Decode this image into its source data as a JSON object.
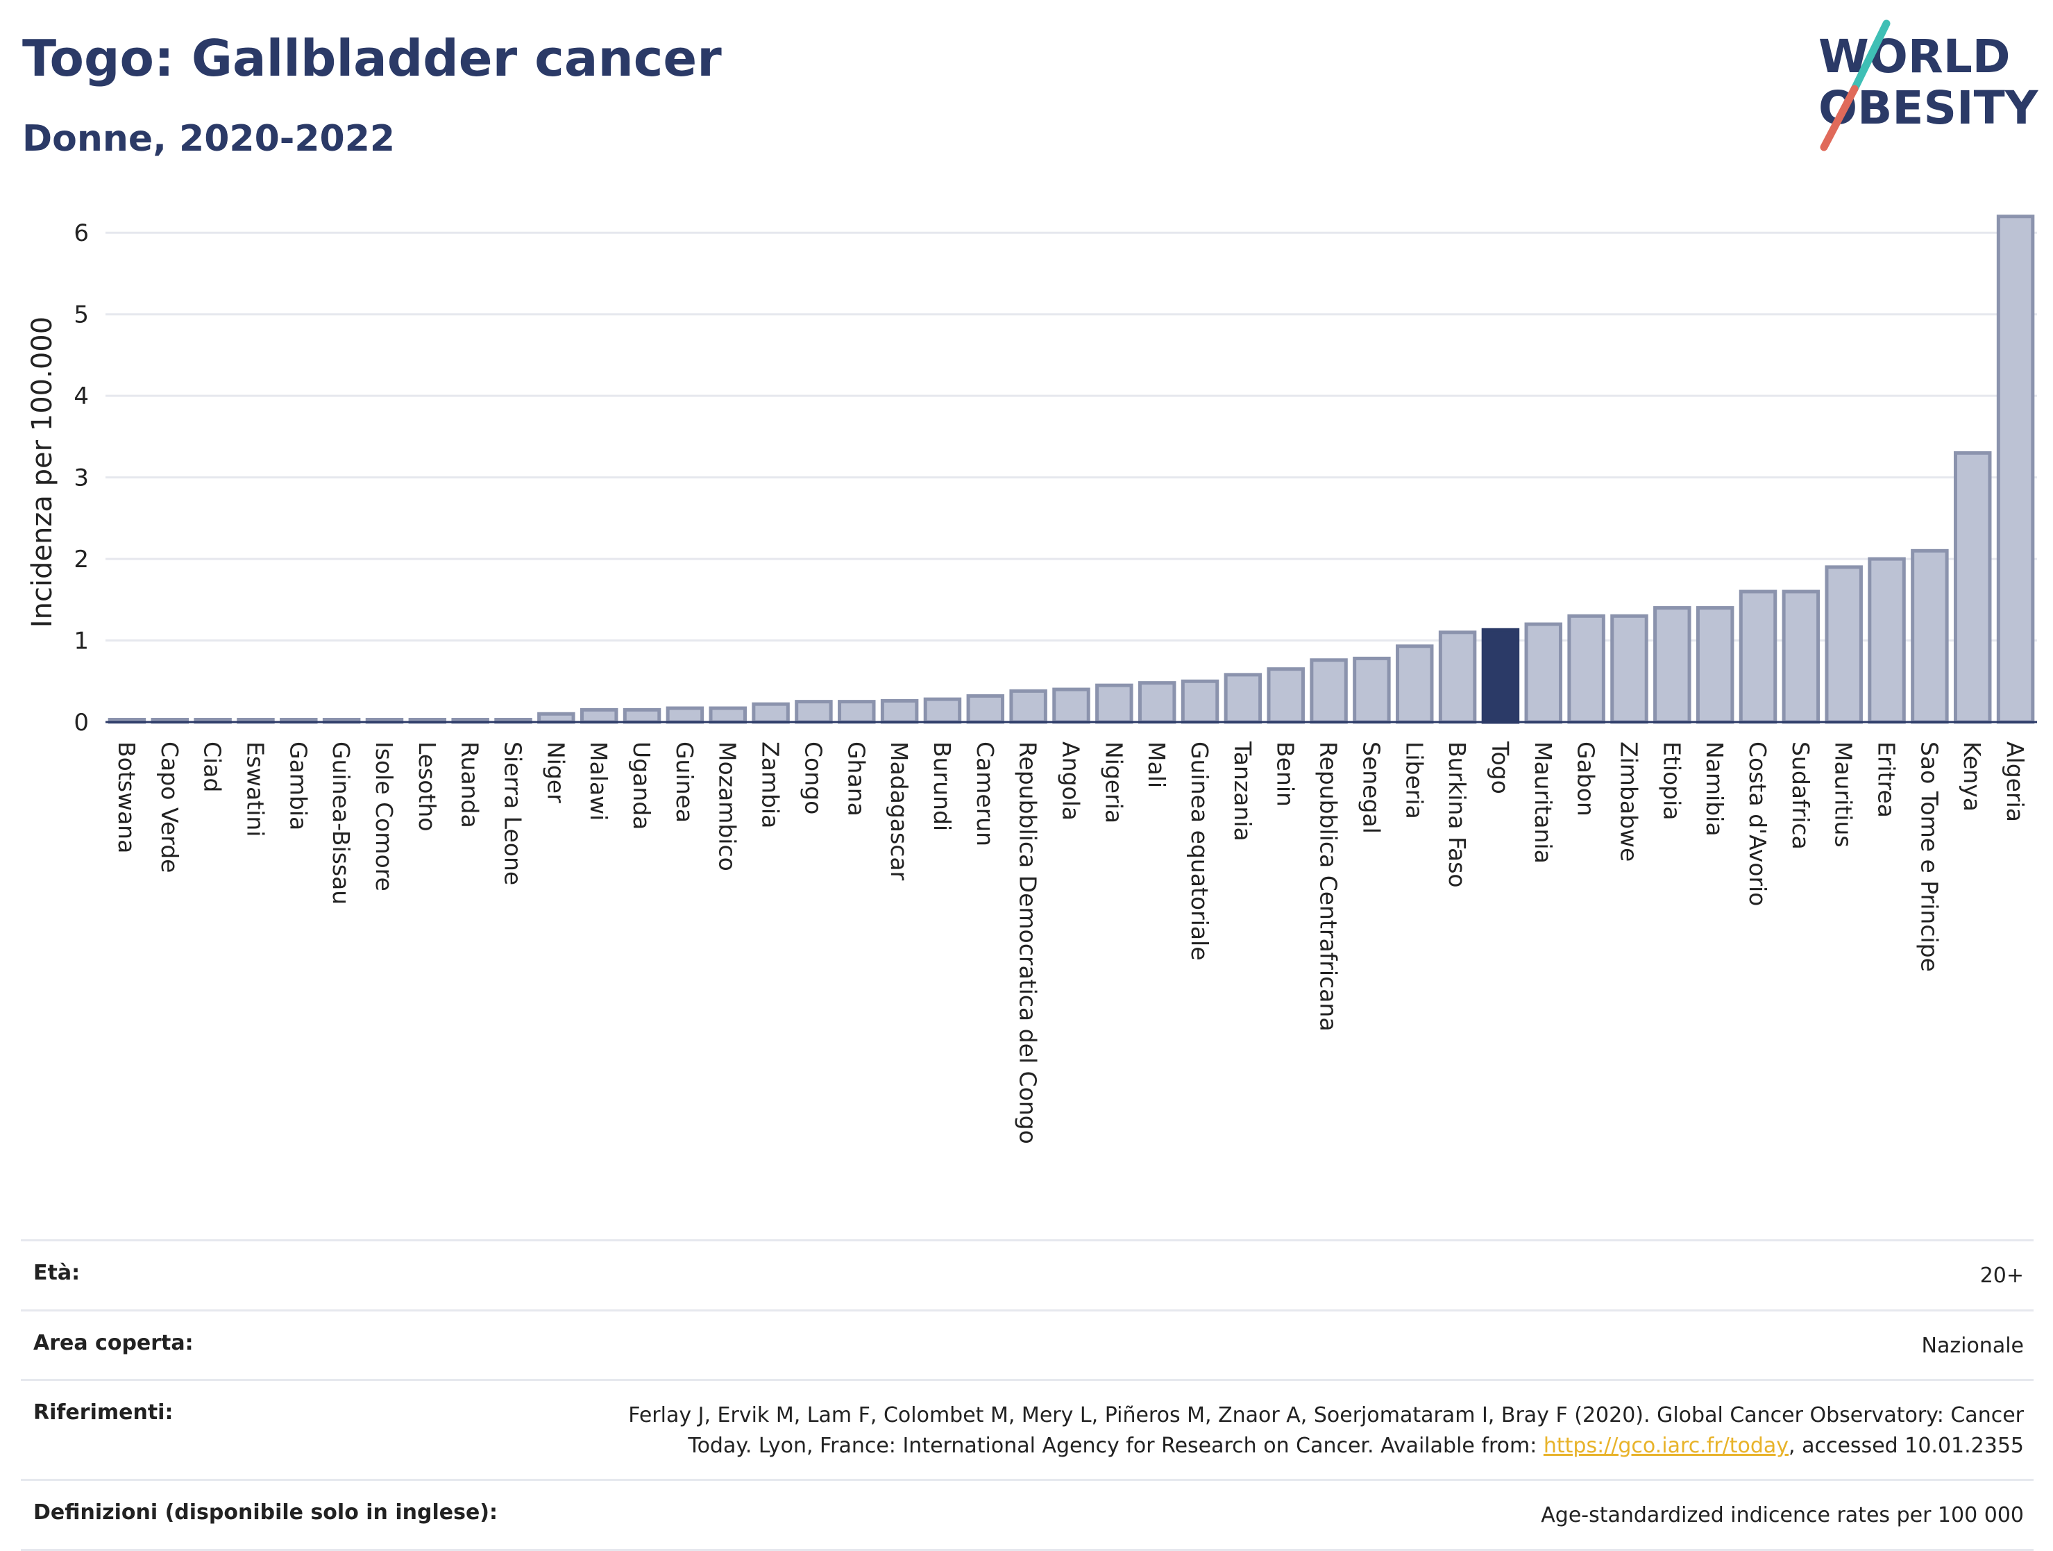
{
  "header": {
    "title": "Togo: Gallbladder cancer",
    "subtitle": "Donne, 2020-2022"
  },
  "logo": {
    "line1": "WORLD",
    "line2": "OBESITY"
  },
  "colors": {
    "bar": "#bcc2d4",
    "bar_border": "#8b93ad",
    "highlight": "#2b3a67",
    "grid": "#e6e8ee"
  },
  "chart_data": {
    "type": "bar",
    "ylabel": "Incidenza per 100.000",
    "ylim": [
      0,
      6.3
    ],
    "yticks": [
      0,
      1,
      2,
      3,
      4,
      5,
      6
    ],
    "grid": true,
    "highlight": "Togo",
    "categories": [
      "Botswana",
      "Capo Verde",
      "Ciad",
      "Eswatini",
      "Gambia",
      "Guinea-Bissau",
      "Isole Comore",
      "Lesotho",
      "Ruanda",
      "Sierra Leone",
      "Niger",
      "Malawi",
      "Uganda",
      "Guinea",
      "Mozambico",
      "Zambia",
      "Congo",
      "Ghana",
      "Madagascar",
      "Burundi",
      "Camerun",
      "Repubblica Democratica del Congo",
      "Angola",
      "Nigeria",
      "Mali",
      "Guinea equatoriale",
      "Tanzania",
      "Benin",
      "Repubblica Centrafricana",
      "Senegal",
      "Liberia",
      "Burkina Faso",
      "Togo",
      "Mauritania",
      "Gabon",
      "Zimbabwe",
      "Etiopia",
      "Namibia",
      "Costa d'Avorio",
      "Sudafrica",
      "Mauritius",
      "Eritrea",
      "Sao Tome e Principe",
      "Kenya",
      "Algeria"
    ],
    "values": [
      0.03,
      0.03,
      0.03,
      0.03,
      0.03,
      0.03,
      0.03,
      0.03,
      0.03,
      0.03,
      0.1,
      0.15,
      0.15,
      0.17,
      0.17,
      0.22,
      0.25,
      0.25,
      0.26,
      0.28,
      0.32,
      0.38,
      0.4,
      0.45,
      0.48,
      0.5,
      0.58,
      0.65,
      0.76,
      0.78,
      0.93,
      1.1,
      1.13,
      1.2,
      1.3,
      1.3,
      1.4,
      1.4,
      1.6,
      1.6,
      1.9,
      2.0,
      2.1,
      3.3,
      6.2
    ]
  },
  "footer": [
    {
      "label": "Età:",
      "value": "20+"
    },
    {
      "label": "Area coperta:",
      "value": "Nazionale"
    },
    {
      "label": "Riferimenti:",
      "value_line1": "Ferlay J, Ervik M, Lam F, Colombet M, Mery L, Piñeros M, Znaor A, Soerjomataram I, Bray F (2020). Global Cancer Observatory: Cancer",
      "value_line2_pre": "Today. Lyon, France: International Agency for Research on Cancer. Available from: ",
      "link": "https://gco.iarc.fr/today",
      "value_line2_post": ", accessed 10.01.2355"
    },
    {
      "label": "Definizioni (disponibile solo in inglese):",
      "value": "Age-standardized indicence rates per 100 000"
    }
  ]
}
